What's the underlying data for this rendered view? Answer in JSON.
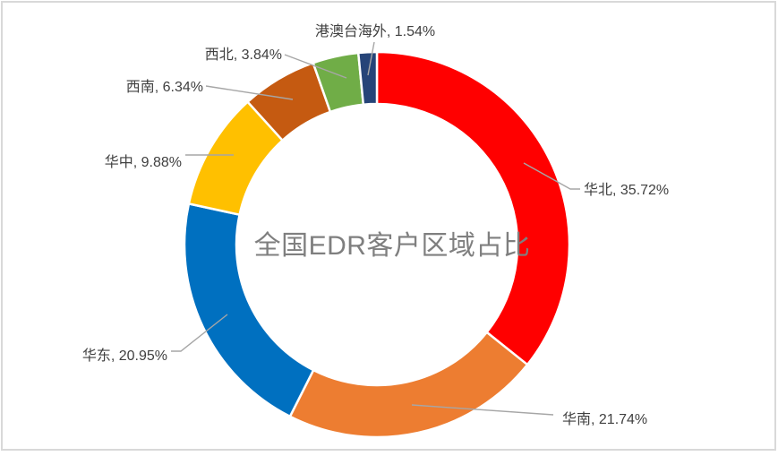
{
  "frame_border_color": "#D9D9D9",
  "chart_data": {
    "type": "pie",
    "subtype": "donut",
    "title": "全国EDR客户区域占比",
    "title_color": "#7F7F7F",
    "start_angle_deg": 0,
    "direction": "clockwise",
    "categories": [
      "华北",
      "华南",
      "华东",
      "华中",
      "西南",
      "西北",
      "港澳台海外"
    ],
    "values": [
      35.72,
      21.74,
      20.95,
      9.88,
      6.34,
      3.84,
      1.54
    ],
    "colors": [
      "#FF0000",
      "#ED7D31",
      "#0070C0",
      "#FFC000",
      "#C55A11",
      "#70AD47",
      "#264478"
    ],
    "labels": [
      "华北, 35.72%",
      "华南, 21.74%",
      "华东, 20.95%",
      "华中, 9.88%",
      "西南, 6.34%",
      "西北, 3.84%",
      "港澳台海外, 1.54%"
    ],
    "label_format": "{category}, {value}%",
    "label_color": "#404040",
    "leader_line_color": "#A6A6A6",
    "segment_border_color": "#FFFFFF",
    "inner_radius_ratio": 0.73,
    "legend": "none",
    "grid": "off"
  }
}
